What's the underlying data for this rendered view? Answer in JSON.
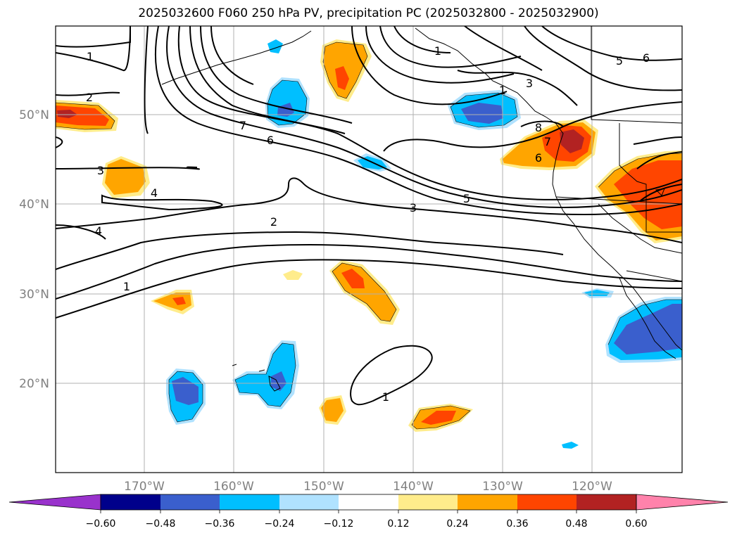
{
  "title": "2025032600 F060 250 hPa PV, precipitation PC (2025032800 - 2025032900)",
  "lat_labels": [
    "50°N",
    "40°N",
    "30°N",
    "20°N"
  ],
  "lon_labels": [
    "170°W",
    "160°W",
    "150°W",
    "140°W",
    "130°W",
    "120°W"
  ],
  "contour_labels": [
    "1",
    "2",
    "1",
    "3",
    "4",
    "4",
    "1",
    "2",
    "3",
    "5",
    "6",
    "7",
    "6",
    "7",
    "8",
    "5",
    "6",
    "1",
    "3",
    "1",
    "8",
    "4",
    "1"
  ],
  "colorbar": {
    "ticks": [
      "−0.60",
      "−0.48",
      "−0.36",
      "−0.24",
      "−0.12",
      "0.12",
      "0.24",
      "0.36",
      "0.48",
      "0.60"
    ],
    "colors": {
      "below": "#9932CC",
      "neg_060": "#00008B",
      "neg_048": "#3A5FCD",
      "neg_036": "#00BFFF",
      "neg_024": "#B0E2FF",
      "neutral": "#FFFFFF",
      "pos_012": "#FFEC8B",
      "pos_024": "#FFA500",
      "pos_036": "#FF4500",
      "pos_048": "#B22222",
      "above": "#FF82AB"
    }
  }
}
